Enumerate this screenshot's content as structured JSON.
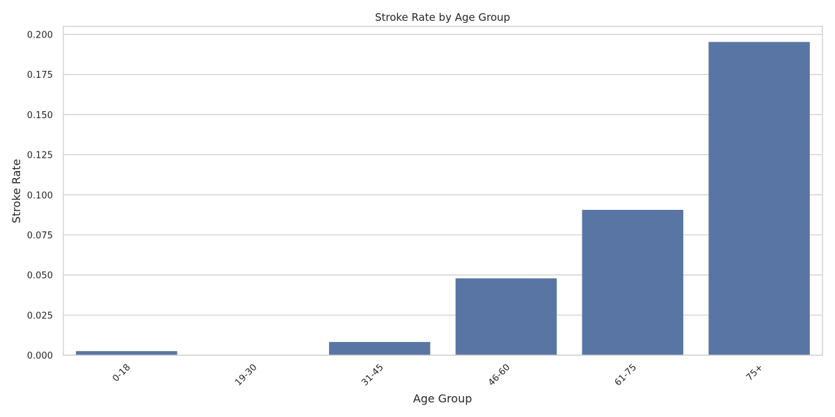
{
  "chart_data": {
    "type": "bar",
    "title": "Stroke Rate by Age Group",
    "xlabel": "Age Group",
    "ylabel": "Stroke Rate",
    "categories": [
      "0-18",
      "19-30",
      "31-45",
      "46-60",
      "61-75",
      "75+"
    ],
    "values": [
      0.0025,
      0.0,
      0.0082,
      0.0479,
      0.0906,
      0.1953
    ],
    "ylim": [
      0,
      0.205
    ],
    "yticks": [
      "0.000",
      "0.025",
      "0.050",
      "0.075",
      "0.100",
      "0.125",
      "0.150",
      "0.175",
      "0.200"
    ],
    "grid": "horizontal",
    "bar_color": "#5975a4",
    "xtick_rotation": 45
  }
}
